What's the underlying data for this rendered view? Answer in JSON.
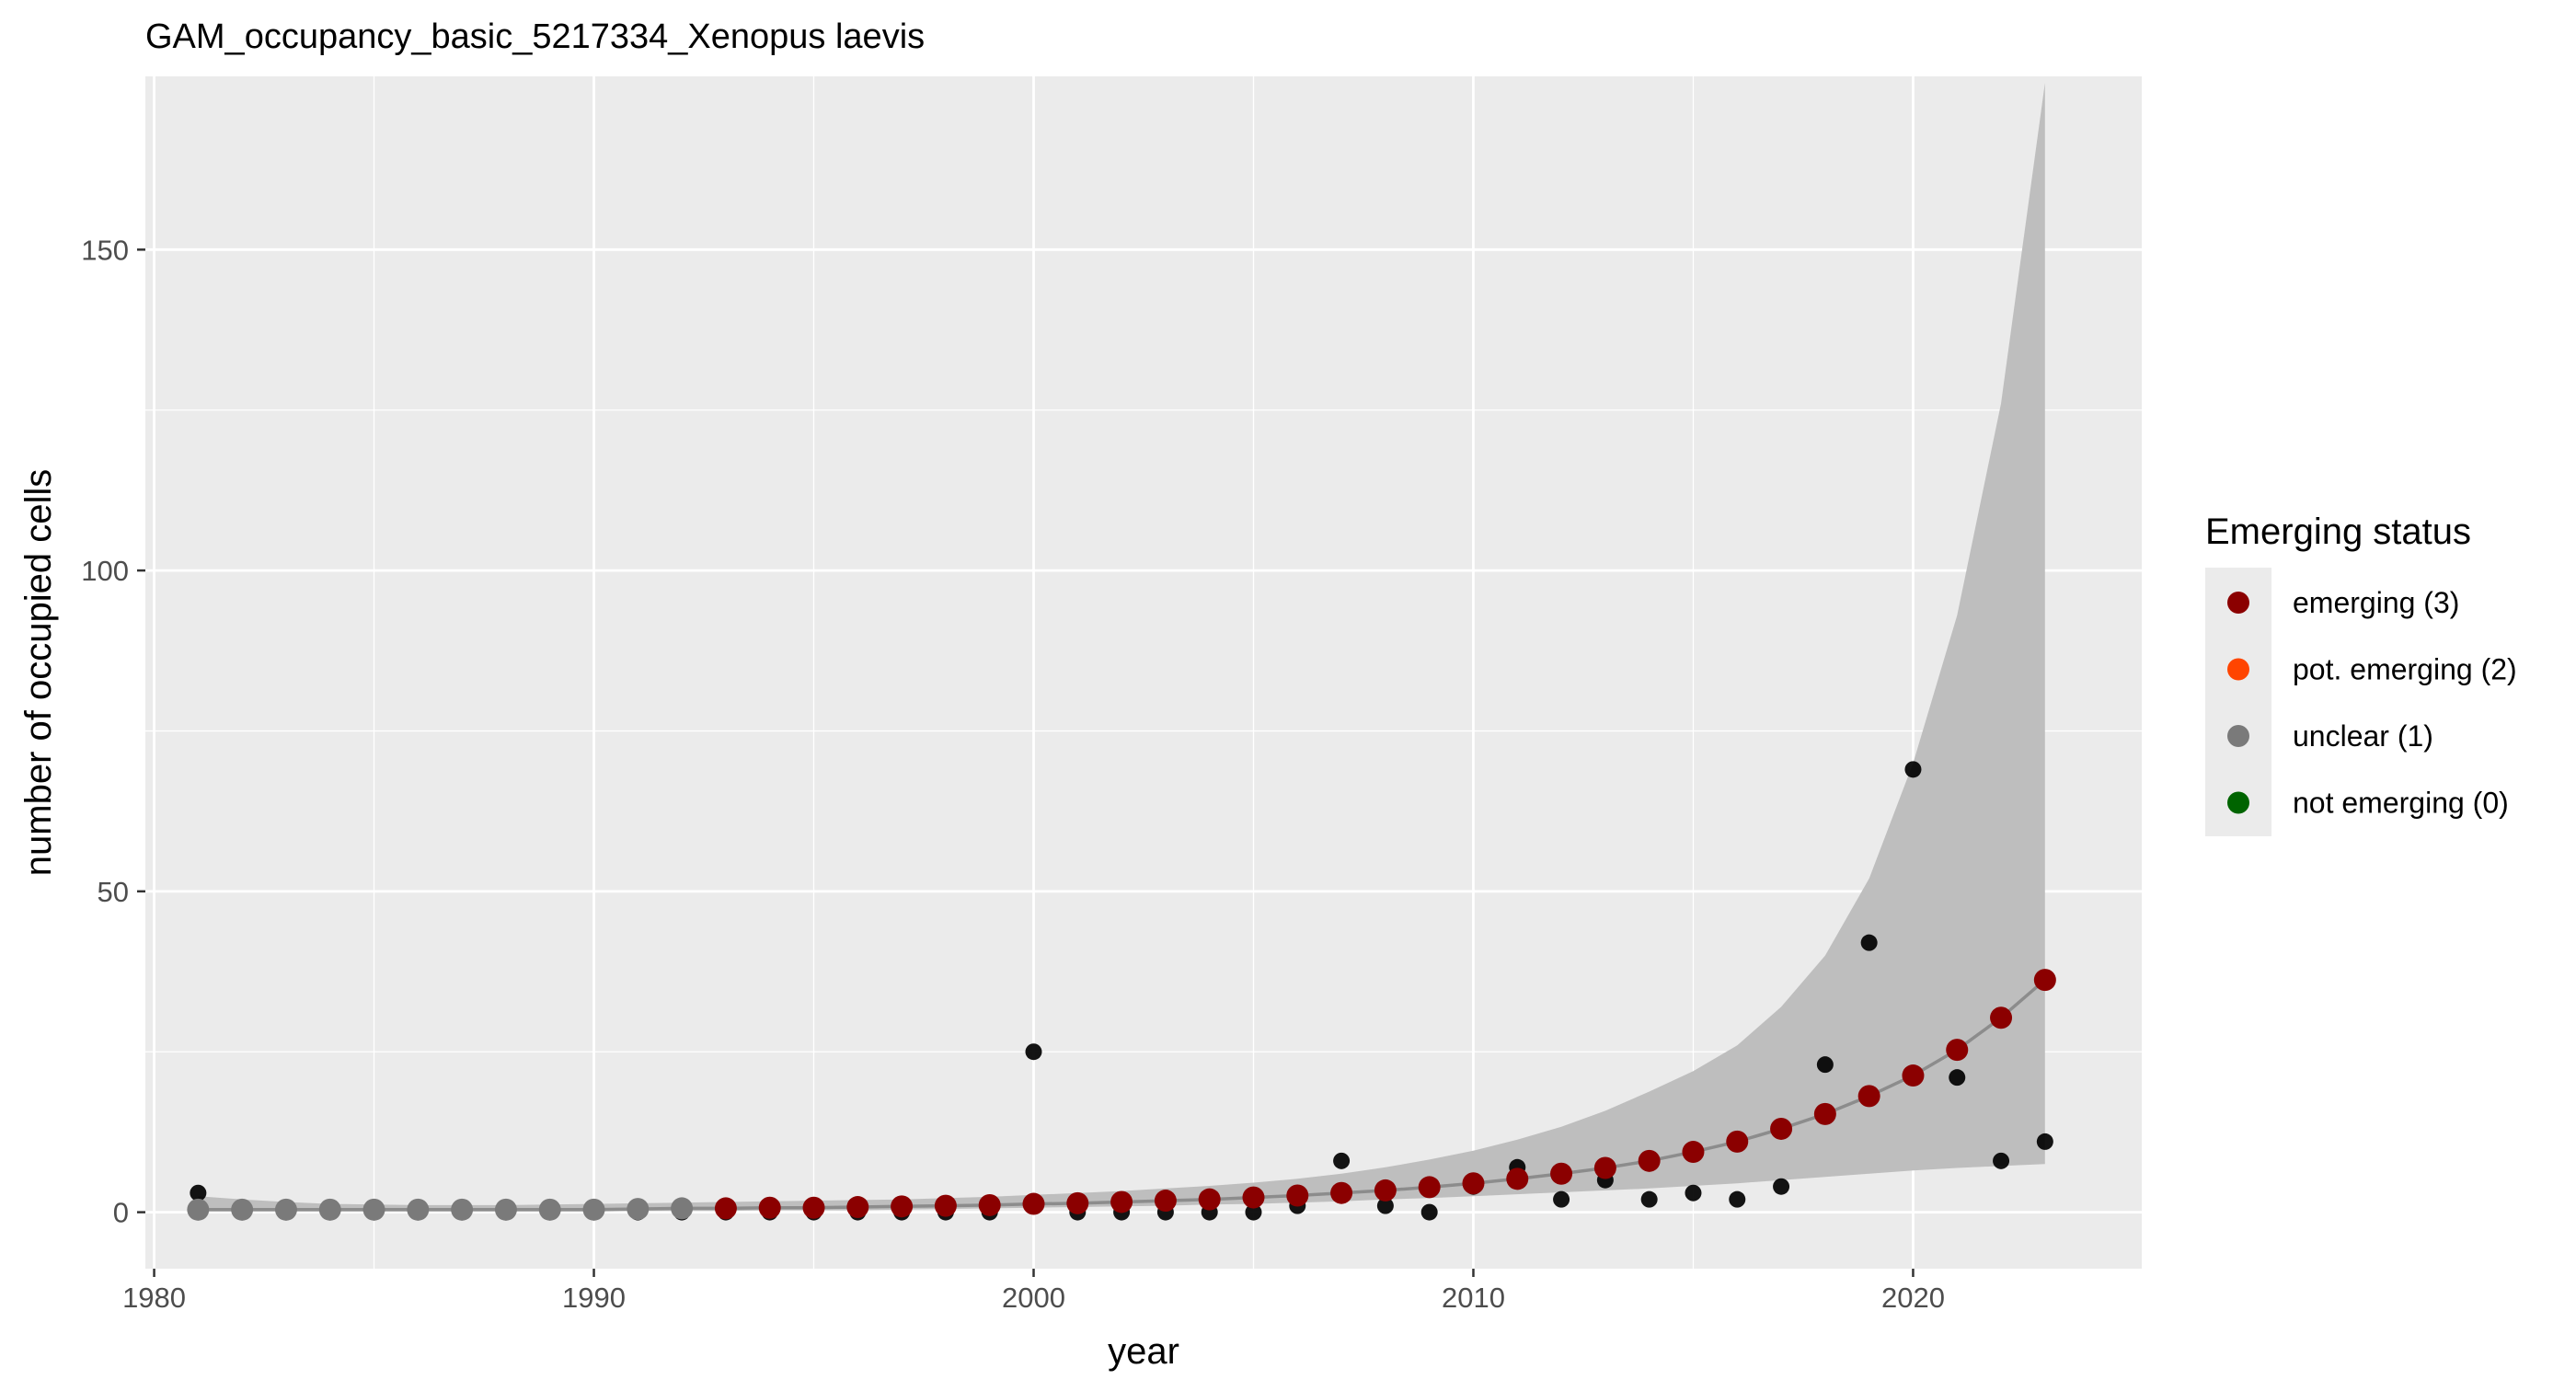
{
  "chart_data": {
    "type": "scatter",
    "title": "GAM_occupancy_basic_5217334_Xenopus laevis",
    "xlabel": "year",
    "ylabel": "number of occupied cells",
    "xlim": [
      1979.8,
      2025.2
    ],
    "ylim": [
      -8.8,
      177
    ],
    "x_ticks": [
      1980,
      1990,
      2000,
      2010,
      2020
    ],
    "x_minor_ticks": [
      1985,
      1995,
      2005,
      2015
    ],
    "y_ticks": [
      0,
      50,
      100,
      150
    ],
    "y_minor_ticks": [
      25,
      75,
      125
    ],
    "grid": true,
    "legend": {
      "title": "Emerging status",
      "position": "right",
      "entries": [
        {
          "label": "emerging (3)",
          "color": "#8b0000"
        },
        {
          "label": "pot. emerging (2)",
          "color": "#ff4500"
        },
        {
          "label": "unclear (1)",
          "color": "#7a7a7a"
        },
        {
          "label": "not emerging (0)",
          "color": "#006400"
        }
      ]
    },
    "colors": {
      "panel": "#ebebeb",
      "grid": "#ffffff",
      "ribbon": "#bebebe",
      "fit_line": "#8c8c8c",
      "observed": "#000000"
    },
    "observed": {
      "x": [
        1981,
        1982,
        1983,
        1984,
        1985,
        1986,
        1987,
        1988,
        1989,
        1990,
        1991,
        1992,
        1993,
        1994,
        1995,
        1996,
        1997,
        1998,
        1999,
        2000,
        2001,
        2002,
        2003,
        2004,
        2005,
        2006,
        2007,
        2008,
        2009,
        2010,
        2011,
        2012,
        2013,
        2014,
        2015,
        2016,
        2017,
        2018,
        2019,
        2020,
        2021,
        2022,
        2023
      ],
      "y": [
        3,
        0,
        0,
        0,
        0,
        0,
        0,
        0,
        0,
        0,
        0,
        0,
        0,
        0,
        0,
        0,
        0,
        0,
        0,
        25,
        0,
        0,
        0,
        0,
        0,
        1,
        8,
        1,
        0,
        4,
        7,
        2,
        5,
        2,
        3,
        2,
        4,
        23,
        42,
        69,
        21,
        8,
        11
      ]
    },
    "series": [
      {
        "name": "GAM fit",
        "x": [
          1981,
          1982,
          1983,
          1984,
          1985,
          1986,
          1987,
          1988,
          1989,
          1990,
          1991,
          1992,
          1993,
          1994,
          1995,
          1996,
          1997,
          1998,
          1999,
          2000,
          2001,
          2002,
          2003,
          2004,
          2005,
          2006,
          2007,
          2008,
          2009,
          2010,
          2011,
          2012,
          2013,
          2014,
          2015,
          2016,
          2017,
          2018,
          2019,
          2020,
          2021,
          2022,
          2023
        ],
        "y": [
          0.4,
          0.4,
          0.4,
          0.4,
          0.4,
          0.4,
          0.4,
          0.4,
          0.4,
          0.4,
          0.5,
          0.6,
          0.6,
          0.7,
          0.7,
          0.8,
          0.9,
          1.0,
          1.1,
          1.3,
          1.4,
          1.6,
          1.8,
          2.0,
          2.3,
          2.6,
          3.0,
          3.4,
          3.9,
          4.5,
          5.2,
          6.0,
          6.9,
          8.0,
          9.4,
          11.0,
          13.0,
          15.3,
          18.1,
          21.3,
          25.3,
          30.3,
          36.2
        ],
        "status": [
          1,
          1,
          1,
          1,
          1,
          1,
          1,
          1,
          1,
          1,
          1,
          1,
          3,
          3,
          3,
          3,
          3,
          3,
          3,
          3,
          3,
          3,
          3,
          3,
          3,
          3,
          3,
          3,
          3,
          3,
          3,
          3,
          3,
          3,
          3,
          3,
          3,
          3,
          3,
          3,
          3,
          3,
          3
        ],
        "lower": [
          0.1,
          0.1,
          0.1,
          0.1,
          0.1,
          0.1,
          0.1,
          0.1,
          0.1,
          0.1,
          0.2,
          0.2,
          0.2,
          0.3,
          0.3,
          0.3,
          0.4,
          0.5,
          0.6,
          0.7,
          0.8,
          0.9,
          1.0,
          1.2,
          1.3,
          1.5,
          1.7,
          2.0,
          2.2,
          2.5,
          2.8,
          3.1,
          3.4,
          3.7,
          4.1,
          4.5,
          5.0,
          5.5,
          6.0,
          6.5,
          6.9,
          7.2,
          7.5
        ],
        "upper": [
          2.5,
          2.0,
          1.6,
          1.3,
          1.2,
          1.1,
          1.1,
          1.1,
          1.2,
          1.3,
          1.4,
          1.5,
          1.6,
          1.7,
          1.8,
          1.9,
          2.0,
          2.2,
          2.4,
          2.7,
          3.0,
          3.3,
          3.7,
          4.1,
          4.6,
          5.2,
          6.0,
          7.0,
          8.2,
          9.6,
          11.3,
          13.3,
          15.8,
          18.8,
          22.0,
          26.0,
          32.0,
          40.0,
          52.0,
          70.0,
          93.0,
          126.0,
          176.0
        ]
      }
    ]
  }
}
